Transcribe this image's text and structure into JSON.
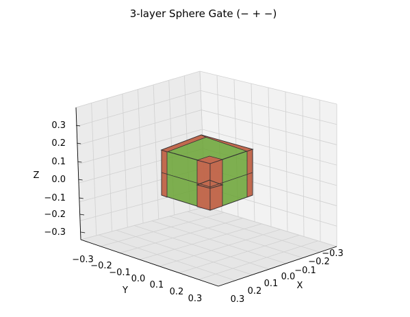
{
  "chart_data": {
    "type": "3d-voxel",
    "title": "3-layer Sphere Gate  (−  +  −)",
    "xlabel": "X",
    "ylabel": "Y",
    "zlabel": "Z",
    "xlim": [
      -0.35,
      0.35
    ],
    "ylim": [
      -0.35,
      0.35
    ],
    "zlim": [
      -0.35,
      0.35
    ],
    "x_ticks": [
      "−0.3",
      "−0.2",
      "−0.1",
      "0.0",
      "0.1",
      "0.2",
      "0.3"
    ],
    "y_ticks": [
      "−0.3",
      "−0.2",
      "−0.1",
      "0.0",
      "0.1",
      "0.2",
      "0.3"
    ],
    "z_ticks": [
      "−0.3",
      "−0.2",
      "0.1",
      "0.0",
      "−0.1",
      "−0.2",
      "−0.3"
    ],
    "z_tick_order_note": "",
    "grid": true,
    "layers": [
      {
        "color": "#d9534f",
        "extent": 0.12
      },
      {
        "color": "#6aa334",
        "extent": 0.12
      },
      {
        "color": "#d9534f",
        "extent": 0.04
      }
    ],
    "colors": {
      "red": "#d9534f",
      "green": "#6aa334",
      "pane": "#f2f2f2",
      "grid": "#d0d0d0"
    }
  }
}
